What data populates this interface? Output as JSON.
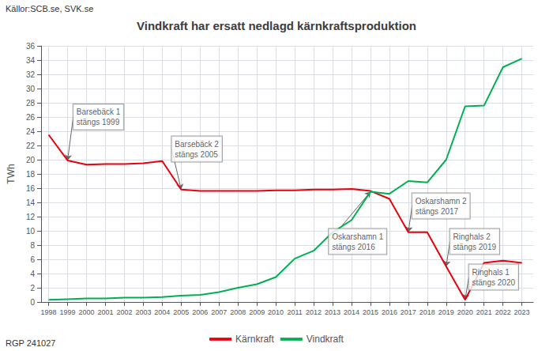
{
  "chart_data": {
    "type": "line",
    "title": "Vindkraft har ersatt nedlagd kärnkraftsproduktion",
    "source": "Källor:SCB.se, SVK.se",
    "footer": "RGP 241027",
    "ylabel": "TWh",
    "x": [
      1998,
      1999,
      2000,
      2001,
      2002,
      2003,
      2004,
      2005,
      2006,
      2007,
      2008,
      2009,
      2010,
      2011,
      2012,
      2013,
      2014,
      2015,
      2016,
      2017,
      2018,
      2019,
      2020,
      2021,
      2022,
      2023
    ],
    "series": [
      {
        "name": "Kärnkraft",
        "color": "#e8000d",
        "values": [
          23.5,
          19.9,
          19.3,
          19.4,
          19.4,
          19.5,
          19.8,
          15.8,
          15.6,
          15.6,
          15.6,
          15.6,
          15.7,
          15.7,
          15.8,
          15.8,
          15.9,
          15.6,
          14.5,
          9.8,
          9.8,
          5.0,
          0.3,
          5.5,
          5.8,
          5.5
        ]
      },
      {
        "name": "Vindkraft",
        "color": "#00b050",
        "values": [
          0.3,
          0.4,
          0.5,
          0.5,
          0.6,
          0.6,
          0.7,
          0.9,
          1.0,
          1.4,
          2.0,
          2.5,
          3.5,
          6.1,
          7.2,
          9.8,
          11.5,
          15.5,
          15.2,
          17.0,
          16.8,
          20.0,
          27.5,
          27.6,
          33.0,
          34.2
        ]
      }
    ],
    "xlim": [
      1997.6,
      2023.6
    ],
    "xticks": [
      1998,
      1999,
      2000,
      2001,
      2002,
      2003,
      2004,
      2005,
      2006,
      2007,
      2008,
      2009,
      2010,
      2011,
      2012,
      2013,
      2014,
      2015,
      2016,
      2017,
      2018,
      2019,
      2020,
      2021,
      2022,
      2023
    ],
    "ylim": [
      0,
      36
    ],
    "yticks": [
      0,
      2,
      4,
      6,
      8,
      10,
      12,
      14,
      16,
      18,
      20,
      22,
      24,
      26,
      28,
      30,
      32,
      34,
      36
    ],
    "grid": true,
    "legend": "bottom",
    "annotations": [
      {
        "text": "Barsebäck 1\nstängs 1999",
        "xy": [
          1999,
          19.9
        ],
        "xytext": [
          1999.3,
          26.0
        ]
      },
      {
        "text": "Barsebäck 2\nstängs 2005",
        "xy": [
          2005,
          15.8
        ],
        "xytext": [
          2004.5,
          21.5
        ]
      },
      {
        "text": "Oskarshamn 1\nstängs 2016",
        "xy": [
          2015,
          15.5
        ],
        "xytext": [
          2012.8,
          8.5
        ]
      },
      {
        "text": "Oskarshamn 2\nstängs 2017",
        "xy": [
          2017,
          9.8
        ],
        "xytext": [
          2017.2,
          13.5
        ]
      },
      {
        "text": "Ringhals 2\nstängs 2019",
        "xy": [
          2019,
          5.0
        ],
        "xytext": [
          2019.2,
          8.5
        ]
      },
      {
        "text": "Ringhals 1\nstängs 2020",
        "xy": [
          2020,
          0.3
        ],
        "xytext": [
          2020.2,
          3.5
        ]
      }
    ]
  }
}
